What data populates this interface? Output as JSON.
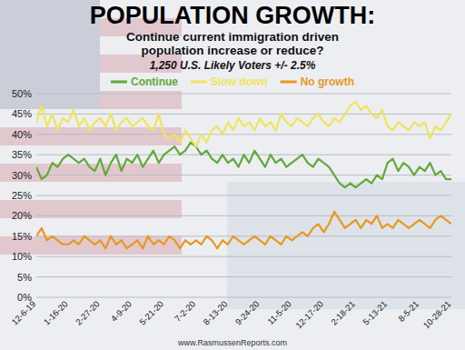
{
  "chart_data": {
    "type": "line",
    "title": "POPULATION GROWTH:",
    "subtitle": [
      "Continue current immigration driven",
      "population increase or reduce?"
    ],
    "note": "1,250 U.S. Likely Voters +/- 2.5%",
    "footer": "www.RasmussenReports.com",
    "categories": [
      "12-6-19",
      null,
      null,
      null,
      null,
      null,
      "1-16-20",
      null,
      null,
      null,
      null,
      null,
      "2-27-20",
      null,
      null,
      null,
      null,
      null,
      "4-9-20",
      null,
      null,
      null,
      null,
      null,
      "5-21-20",
      null,
      null,
      null,
      null,
      null,
      "7-2-20",
      null,
      null,
      null,
      null,
      null,
      "8-13-20",
      null,
      null,
      null,
      null,
      null,
      "9-24-20",
      null,
      null,
      null,
      null,
      null,
      "11-5-20",
      null,
      null,
      null,
      null,
      null,
      "12-17-20",
      null,
      null,
      null,
      null,
      null,
      "2-18-21",
      null,
      null,
      null,
      null,
      null,
      "5-13-21",
      null,
      null,
      null,
      null,
      null,
      "8-5-21",
      null,
      null,
      null,
      null,
      null,
      "10-28-21"
    ],
    "series": [
      {
        "name": "Continue",
        "color": "#62a83a",
        "values": [
          32,
          29,
          30,
          33,
          32,
          34,
          35,
          34,
          33,
          34,
          32,
          31,
          34,
          30,
          33,
          35,
          31,
          34,
          33,
          35,
          32,
          34,
          36,
          33,
          35,
          36,
          37,
          35,
          36,
          38,
          37,
          35,
          36,
          34,
          33,
          35,
          33,
          34,
          32,
          35,
          33,
          36,
          34,
          32,
          35,
          33,
          34,
          32,
          33,
          34,
          35,
          33,
          32,
          34,
          33,
          32,
          30,
          28,
          27,
          28,
          27,
          28,
          29,
          28,
          30,
          29,
          33,
          34,
          31,
          33,
          32,
          30,
          32,
          31,
          33,
          30,
          31,
          29,
          29
        ]
      },
      {
        "name": "Slow down",
        "color": "#efe45a",
        "values": [
          43,
          47,
          42,
          45,
          41,
          44,
          43,
          46,
          42,
          44,
          41,
          43,
          44,
          42,
          45,
          41,
          43,
          44,
          42,
          43,
          44,
          42,
          41,
          45,
          40,
          39,
          40,
          38,
          41,
          39,
          37,
          40,
          38,
          41,
          42,
          40,
          43,
          41,
          44,
          42,
          43,
          41,
          44,
          42,
          43,
          41,
          45,
          43,
          42,
          44,
          43,
          42,
          44,
          45,
          43,
          42,
          44,
          43,
          45,
          47,
          48,
          46,
          47,
          45,
          44,
          46,
          42,
          41,
          43,
          42,
          41,
          43,
          42,
          43,
          39,
          42,
          41,
          43,
          45
        ]
      },
      {
        "name": "No growth",
        "color": "#e8981e",
        "values": [
          15,
          17,
          14,
          15,
          14,
          13,
          13,
          14,
          13,
          15,
          14,
          13,
          14,
          12,
          15,
          13,
          14,
          12,
          13,
          14,
          12,
          15,
          13,
          14,
          13,
          15,
          14,
          12,
          14,
          13,
          14,
          13,
          15,
          14,
          12,
          14,
          13,
          15,
          14,
          13,
          14,
          15,
          14,
          13,
          15,
          14,
          13,
          15,
          14,
          15,
          16,
          15,
          17,
          18,
          16,
          18,
          21,
          19,
          17,
          18,
          19,
          17,
          19,
          18,
          20,
          17,
          18,
          17,
          19,
          18,
          17,
          18,
          19,
          18,
          17,
          19,
          20,
          19,
          18
        ]
      }
    ],
    "ylim": [
      0,
      50
    ],
    "yticks": [
      {
        "value": 0,
        "label": "0%"
      },
      {
        "value": 5,
        "label": "5%"
      },
      {
        "value": 10,
        "label": "10%"
      },
      {
        "value": 15,
        "label": "15%"
      },
      {
        "value": 20,
        "label": "20%"
      },
      {
        "value": 25,
        "label": "25%"
      },
      {
        "value": 30,
        "label": "30%"
      },
      {
        "value": 35,
        "label": "35%"
      },
      {
        "value": 40,
        "label": "40%"
      },
      {
        "value": 45,
        "label": "45%"
      },
      {
        "value": 50,
        "label": "50%"
      }
    ],
    "grid": true,
    "legend": "top"
  }
}
